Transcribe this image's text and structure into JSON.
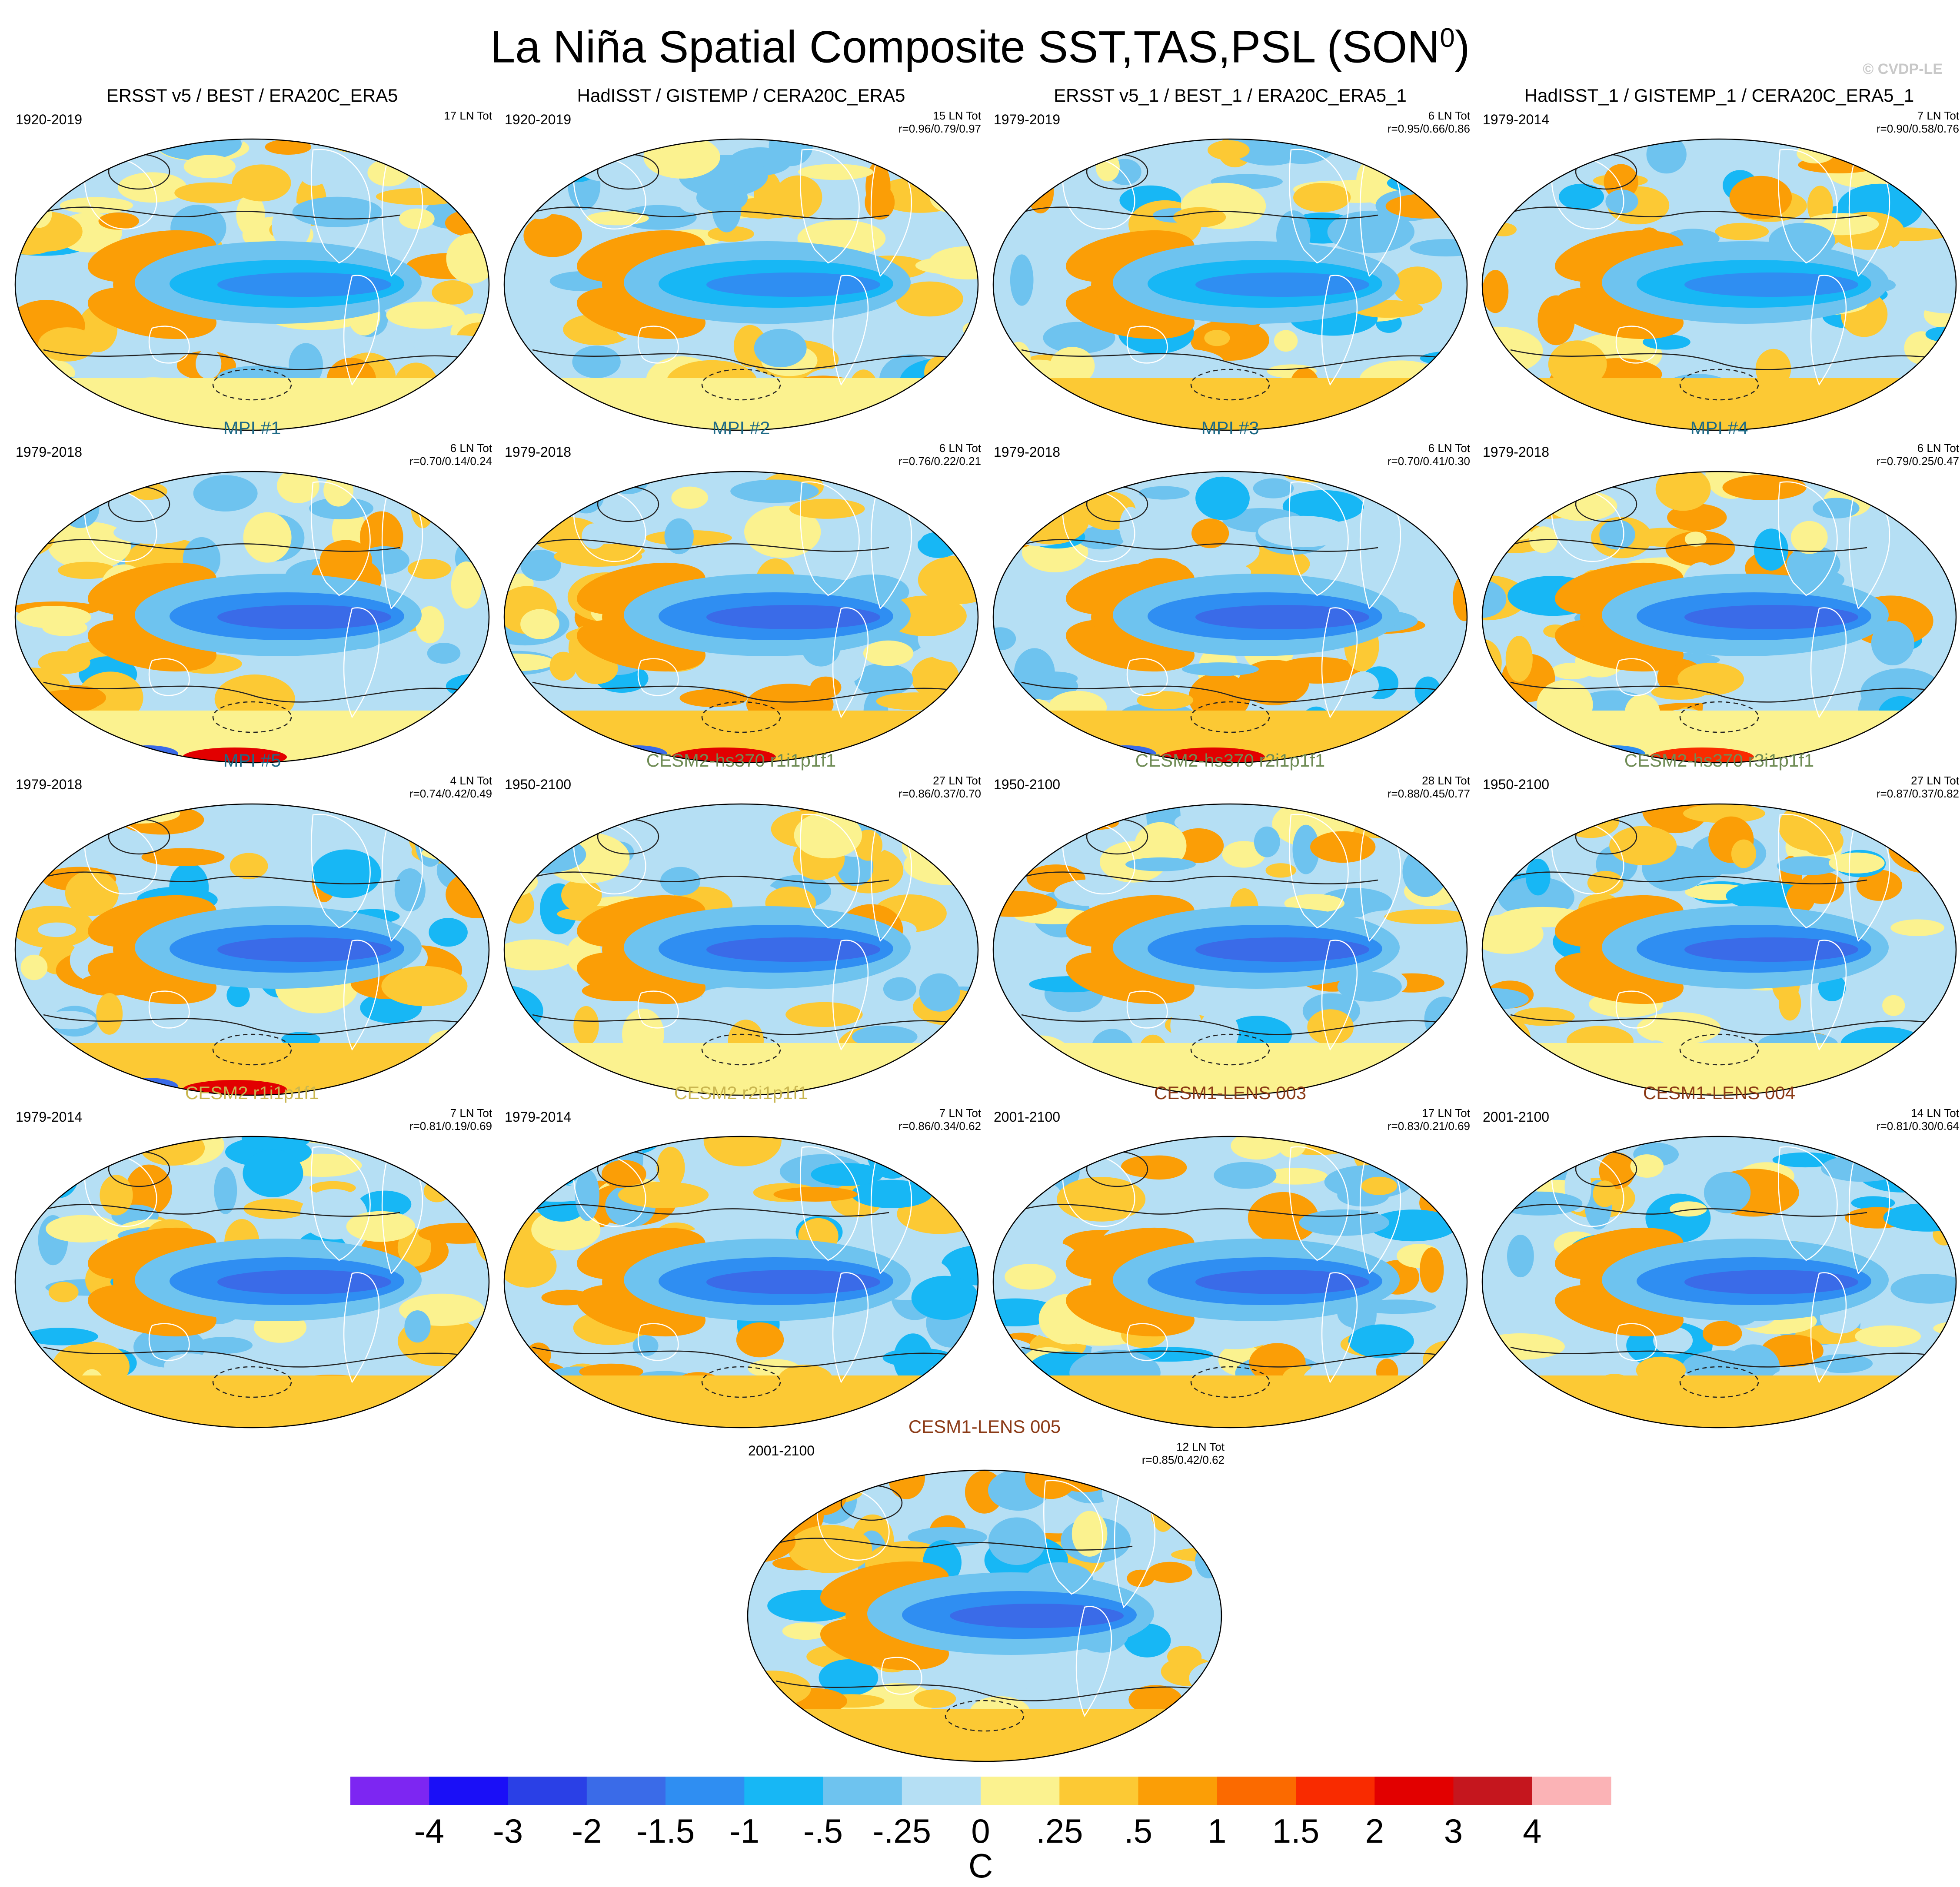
{
  "figure": {
    "title_main": "La Niña Spatial Composite SST,TAS,PSL (SON",
    "title_sup": "0",
    "title_end": ")",
    "credit": "© CVDP-LE"
  },
  "colors": {
    "title_black": "#000000",
    "title_mpi": "#1e6a86",
    "title_cesm2_hs370": "#6f8c55",
    "title_cesm2": "#c9b650",
    "title_cesm1": "#8b3a16"
  },
  "chart_data": {
    "type": "heatmap",
    "title": "La Niña Spatial Composite SST,TAS,PSL (SON0)",
    "colorbar": {
      "label": "C",
      "tick_labels": [
        "-4",
        "-3",
        "-2",
        "-1.5",
        "-1",
        "-.5",
        "-.25",
        "0",
        ".25",
        ".5",
        "1",
        "1.5",
        "2",
        "3",
        "4"
      ],
      "levels": [
        -4,
        -3,
        -2,
        -1.5,
        -1,
        -0.5,
        -0.25,
        0,
        0.25,
        0.5,
        1,
        1.5,
        2,
        3,
        4
      ],
      "colors": [
        "#7d26f2",
        "#1a0ff7",
        "#2a40e6",
        "#3a6be8",
        "#2f8ef2",
        "#17b7f5",
        "#6ec3ef",
        "#b5dff4",
        "#fbf28f",
        "#fcc934",
        "#fb9e06",
        "#fb6a00",
        "#f92b00",
        "#e20000",
        "#c5161e",
        "#fbb3b6"
      ]
    },
    "panels": [
      {
        "title": "ERSST v5 / BEST / ERA20C_ERA5",
        "period": "1920-2019",
        "count": "17 LN Tot",
        "corr": "",
        "style": "title_black",
        "cold": 1.0,
        "warm": 0.55,
        "polar": 0.0
      },
      {
        "title": "HadISST / GISTEMP / CERA20C_ERA5",
        "period": "1920-2019",
        "count": "15 LN Tot",
        "corr": "r=0.96/0.79/0.97",
        "style": "title_black",
        "cold": 1.0,
        "warm": 0.55,
        "polar": 0.0
      },
      {
        "title": "ERSST v5_1 / BEST_1 / ERA20C_ERA5_1",
        "period": "1979-2019",
        "count": "6 LN Tot",
        "corr": "r=0.95/0.66/0.86",
        "style": "title_black",
        "cold": 0.9,
        "warm": 0.8,
        "polar": 0.0
      },
      {
        "title": "HadISST_1 / GISTEMP_1 / CERA20C_ERA5_1",
        "period": "1979-2014",
        "count": "7 LN Tot",
        "corr": "r=0.90/0.58/0.76",
        "style": "title_black",
        "cold": 0.9,
        "warm": 0.8,
        "polar": 0.0
      },
      {
        "title": "MPI #1",
        "period": "1979-2018",
        "count": "6 LN Tot",
        "corr": "r=0.70/0.14/0.24",
        "style": "title_mpi",
        "cold": 1.1,
        "warm": 0.7,
        "polar": 1.0
      },
      {
        "title": "MPI #2",
        "period": "1979-2018",
        "count": "6 LN Tot",
        "corr": "r=0.76/0.22/0.21",
        "style": "title_mpi",
        "cold": 1.1,
        "warm": 0.8,
        "polar": 1.0
      },
      {
        "title": "MPI #3",
        "period": "1979-2018",
        "count": "6 LN Tot",
        "corr": "r=0.70/0.41/0.30",
        "style": "title_mpi",
        "cold": 1.1,
        "warm": 0.8,
        "polar": 1.0
      },
      {
        "title": "MPI #4",
        "period": "1979-2018",
        "count": "6 LN Tot",
        "corr": "r=0.79/0.25/0.47",
        "style": "title_mpi",
        "cold": 1.1,
        "warm": 0.7,
        "polar": 0.6
      },
      {
        "title": "MPI #5",
        "period": "1979-2018",
        "count": "4 LN Tot",
        "corr": "r=0.74/0.42/0.49",
        "style": "title_mpi",
        "cold": 1.3,
        "warm": 0.9,
        "polar": 0.8
      },
      {
        "title": "CESM2-hs370 r1i1p1f1",
        "period": "1950-2100",
        "count": "27 LN Tot",
        "corr": "r=0.86/0.37/0.70",
        "style": "title_cesm2_hs370",
        "cold": 1.3,
        "warm": 0.6,
        "polar": 0.0
      },
      {
        "title": "CESM2-hs370 r2i1p1f1",
        "period": "1950-2100",
        "count": "28 LN Tot",
        "corr": "r=0.88/0.45/0.77",
        "style": "title_cesm2_hs370",
        "cold": 1.3,
        "warm": 0.6,
        "polar": 0.0
      },
      {
        "title": "CESM2-hs370 r3i1p1f1",
        "period": "1950-2100",
        "count": "27 LN Tot",
        "corr": "r=0.87/0.37/0.82",
        "style": "title_cesm2_hs370",
        "cold": 1.3,
        "warm": 0.6,
        "polar": 0.0
      },
      {
        "title": "CESM2 r1i1p1f1",
        "period": "1979-2014",
        "count": "7 LN Tot",
        "corr": "r=0.81/0.19/0.69",
        "style": "title_cesm2",
        "cold": 1.3,
        "warm": 0.8,
        "polar": 0.0
      },
      {
        "title": "CESM2 r2i1p1f1",
        "period": "1979-2014",
        "count": "7 LN Tot",
        "corr": "r=0.86/0.34/0.62",
        "style": "title_cesm2",
        "cold": 1.3,
        "warm": 0.8,
        "polar": 0.0
      },
      {
        "title": "CESM1-LENS 003",
        "period": "2001-2100",
        "count": "17 LN Tot",
        "corr": "r=0.83/0.21/0.69",
        "style": "title_cesm1",
        "cold": 1.3,
        "warm": 0.8,
        "polar": 0.0
      },
      {
        "title": "CESM1-LENS 004",
        "period": "2001-2100",
        "count": "14 LN Tot",
        "corr": "r=0.81/0.30/0.64",
        "style": "title_cesm1",
        "cold": 1.3,
        "warm": 0.8,
        "polar": 0.0
      },
      {
        "title": "CESM1-LENS 005",
        "period": "2001-2100",
        "count": "12 LN Tot",
        "corr": "r=0.85/0.42/0.62",
        "style": "title_cesm1",
        "cold": 1.3,
        "warm": 0.9,
        "polar": 0.0
      }
    ]
  }
}
